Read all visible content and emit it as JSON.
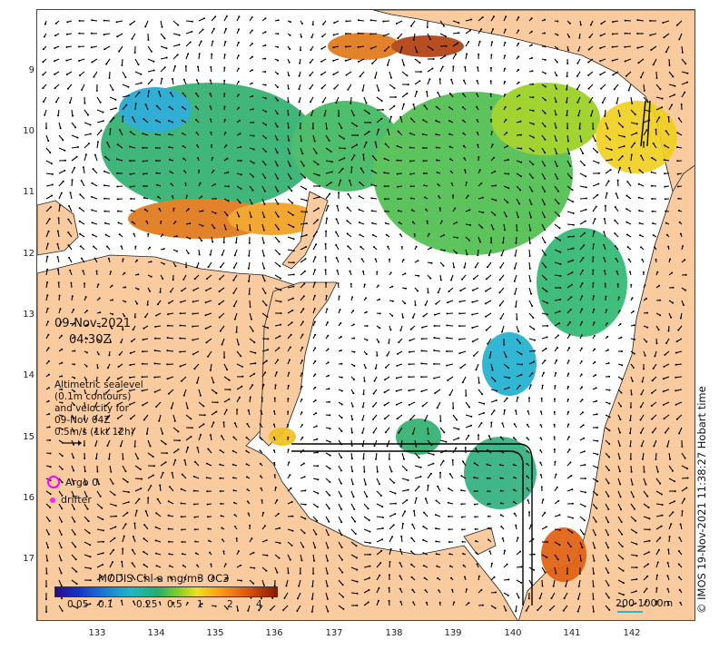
{
  "map": {
    "date": "09-Nov-2021",
    "time": "04:30Z",
    "altimetry_text": [
      "Altimetric sealevel",
      "(0.1m contours)",
      "and velocity for",
      "09-Nov 04Z",
      "0.5m/s (1kt 12h)"
    ],
    "legend": {
      "argo": "Argo 0",
      "drifter": "drifter"
    },
    "colorbar": {
      "title": "MODIS Chl-a mg/m3 OC3",
      "ticks": [
        "0.05",
        "0.1",
        "0.25",
        "0.5",
        "1",
        "2",
        "4"
      ]
    },
    "credit": "© IMOS 19-Nov-2021 11:38:27 Hobart time",
    "scale_label": "200  1000m",
    "lat_labels": [
      "9",
      "10",
      "11",
      "12",
      "13",
      "14",
      "15",
      "16",
      "17"
    ],
    "lon_labels": [
      "133",
      "134",
      "135",
      "136",
      "137",
      "138",
      "139",
      "140",
      "141",
      "142"
    ],
    "colors": {
      "land": "#fbcba0",
      "ocean": "#ffffff",
      "argo": "#ff00ff",
      "drifter": "#ff22ff"
    }
  }
}
